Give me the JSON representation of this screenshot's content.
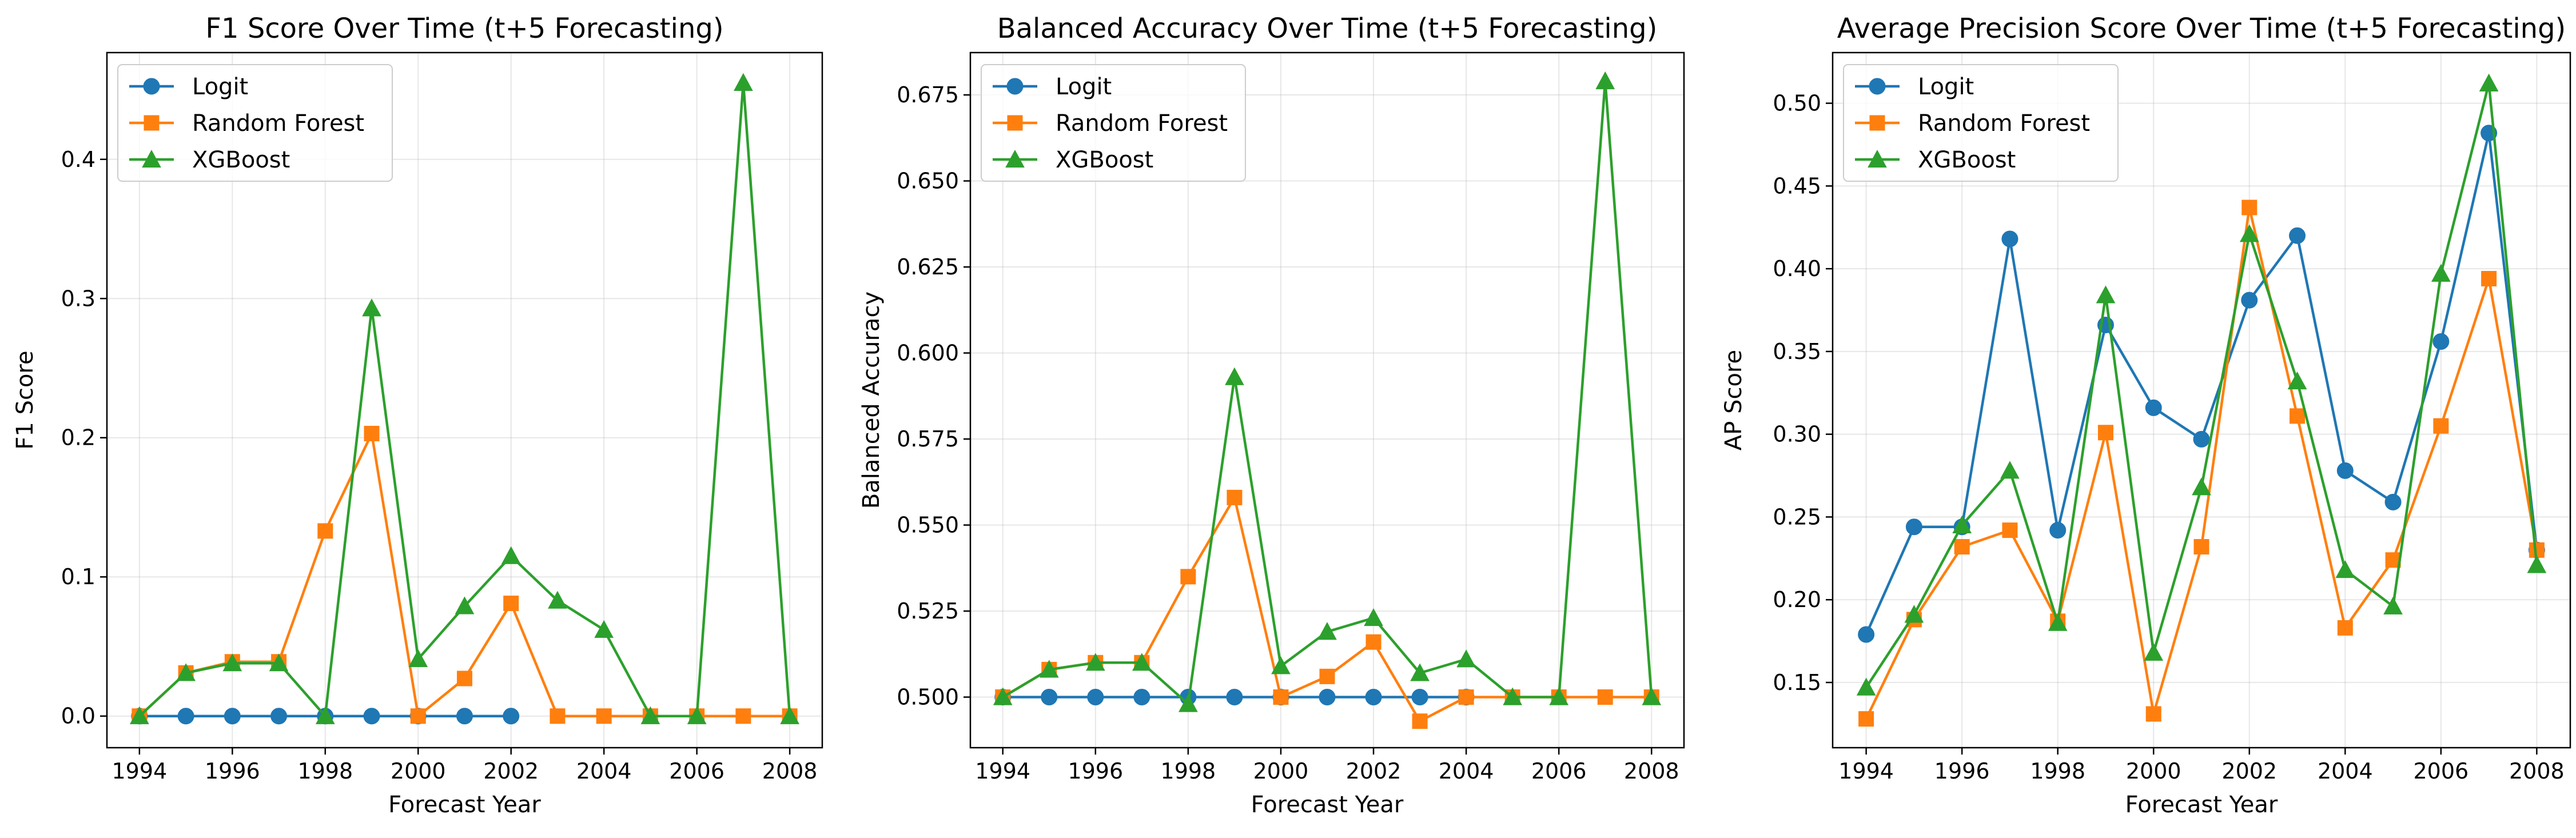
{
  "chart_data": [
    {
      "type": "line",
      "title": "F1 Score Over Time (t+5 Forecasting)",
      "xlabel": "Forecast Year",
      "ylabel": "F1 Score",
      "x": [
        1994,
        1995,
        1996,
        1997,
        1998,
        1999,
        2000,
        2001,
        2002,
        2003,
        2004,
        2005,
        2006,
        2007,
        2008
      ],
      "xticks": [
        1994,
        1996,
        1998,
        2000,
        2002,
        2004,
        2006,
        2008
      ],
      "xtick_labels": [
        "1994",
        "1996",
        "1998",
        "2000",
        "2002",
        "2004",
        "2006",
        "2008"
      ],
      "xlim": [
        1993.3,
        2008.7
      ],
      "ylim": [
        -0.0227,
        0.4767
      ],
      "yticks": [
        0.0,
        0.1,
        0.2,
        0.3,
        0.4
      ],
      "ytick_labels": [
        "0.0",
        "0.1",
        "0.2",
        "0.3",
        "0.4"
      ],
      "grid": true,
      "legend_position": "upper left",
      "series": [
        {
          "name": "Logit",
          "color": "#1f77b4",
          "marker": "circle",
          "values": [
            0,
            0,
            0,
            0,
            0,
            0,
            0,
            0,
            0,
            null,
            null,
            null,
            null,
            null,
            null
          ]
        },
        {
          "name": "Random Forest",
          "color": "#ff7f0e",
          "marker": "square",
          "values": [
            0,
            0.031,
            0.039,
            0.039,
            0.133,
            0.203,
            0,
            0.027,
            0.081,
            0,
            0,
            0,
            0,
            0,
            0
          ]
        },
        {
          "name": "XGBoost",
          "color": "#2ca02c",
          "marker": "triangle",
          "values": [
            0,
            0.031,
            0.038,
            0.038,
            0,
            0.293,
            0.041,
            0.079,
            0.115,
            0.083,
            0.062,
            0,
            0,
            0.455,
            0
          ]
        }
      ]
    },
    {
      "type": "line",
      "title": "Balanced Accuracy Over Time (t+5 Forecasting)",
      "xlabel": "Forecast Year",
      "ylabel": "Balanced Accuracy",
      "x": [
        1994,
        1995,
        1996,
        1997,
        1998,
        1999,
        2000,
        2001,
        2002,
        2003,
        2004,
        2005,
        2006,
        2007,
        2008
      ],
      "xticks": [
        1994,
        1996,
        1998,
        2000,
        2002,
        2004,
        2006,
        2008
      ],
      "xtick_labels": [
        "1994",
        "1996",
        "1998",
        "2000",
        "2002",
        "2004",
        "2006",
        "2008"
      ],
      "xlim": [
        1993.3,
        2008.7
      ],
      "ylim": [
        0.4853,
        0.6873
      ],
      "yticks": [
        0.5,
        0.525,
        0.55,
        0.575,
        0.6,
        0.625,
        0.65,
        0.675
      ],
      "ytick_labels": [
        "0.500",
        "0.525",
        "0.550",
        "0.575",
        "0.600",
        "0.625",
        "0.650",
        "0.675"
      ],
      "grid": true,
      "legend_position": "upper left",
      "series": [
        {
          "name": "Logit",
          "color": "#1f77b4",
          "marker": "circle",
          "values": [
            0.5,
            0.5,
            0.5,
            0.5,
            0.5,
            0.5,
            0.5,
            0.5,
            0.5,
            0.5,
            0.5,
            null,
            null,
            null,
            null
          ]
        },
        {
          "name": "Random Forest",
          "color": "#ff7f0e",
          "marker": "square",
          "values": [
            0.5,
            0.508,
            0.51,
            0.51,
            0.535,
            0.558,
            0.5,
            0.506,
            0.516,
            0.493,
            0.5,
            0.5,
            0.5,
            0.5,
            0.5
          ]
        },
        {
          "name": "XGBoost",
          "color": "#2ca02c",
          "marker": "triangle",
          "values": [
            0.5,
            0.508,
            0.51,
            0.51,
            0.498,
            0.593,
            0.509,
            0.519,
            0.523,
            0.507,
            0.511,
            0.5,
            0.5,
            0.679,
            0.5
          ]
        }
      ]
    },
    {
      "type": "line",
      "title": "Average Precision Score Over Time (t+5 Forecasting)",
      "xlabel": "Forecast Year",
      "ylabel": "AP Score",
      "x": [
        1994,
        1995,
        1996,
        1997,
        1998,
        1999,
        2000,
        2001,
        2002,
        2003,
        2004,
        2005,
        2006,
        2007,
        2008
      ],
      "xticks": [
        1994,
        1996,
        1998,
        2000,
        2002,
        2004,
        2006,
        2008
      ],
      "xtick_labels": [
        "1994",
        "1996",
        "1998",
        "2000",
        "2002",
        "2004",
        "2006",
        "2008"
      ],
      "xlim": [
        1993.3,
        2008.7
      ],
      "ylim": [
        0.1106,
        0.5306
      ],
      "yticks": [
        0.15,
        0.2,
        0.25,
        0.3,
        0.35,
        0.4,
        0.45,
        0.5
      ],
      "ytick_labels": [
        "0.15",
        "0.20",
        "0.25",
        "0.30",
        "0.35",
        "0.40",
        "0.45",
        "0.50"
      ],
      "grid": true,
      "legend_position": "upper left",
      "series": [
        {
          "name": "Logit",
          "color": "#1f77b4",
          "marker": "circle",
          "values": [
            0.179,
            0.244,
            0.244,
            0.418,
            0.242,
            0.366,
            0.316,
            0.297,
            0.381,
            0.42,
            0.278,
            0.259,
            0.356,
            0.482,
            0.23
          ]
        },
        {
          "name": "Random Forest",
          "color": "#ff7f0e",
          "marker": "square",
          "values": [
            0.128,
            0.188,
            0.232,
            0.242,
            0.187,
            0.301,
            0.131,
            0.232,
            0.437,
            0.311,
            0.183,
            0.224,
            0.305,
            0.394,
            0.23
          ]
        },
        {
          "name": "XGBoost",
          "color": "#2ca02c",
          "marker": "triangle",
          "values": [
            0.147,
            0.191,
            0.245,
            0.278,
            0.186,
            0.384,
            0.168,
            0.268,
            0.421,
            0.332,
            0.218,
            0.196,
            0.397,
            0.512,
            0.221
          ]
        }
      ]
    }
  ]
}
